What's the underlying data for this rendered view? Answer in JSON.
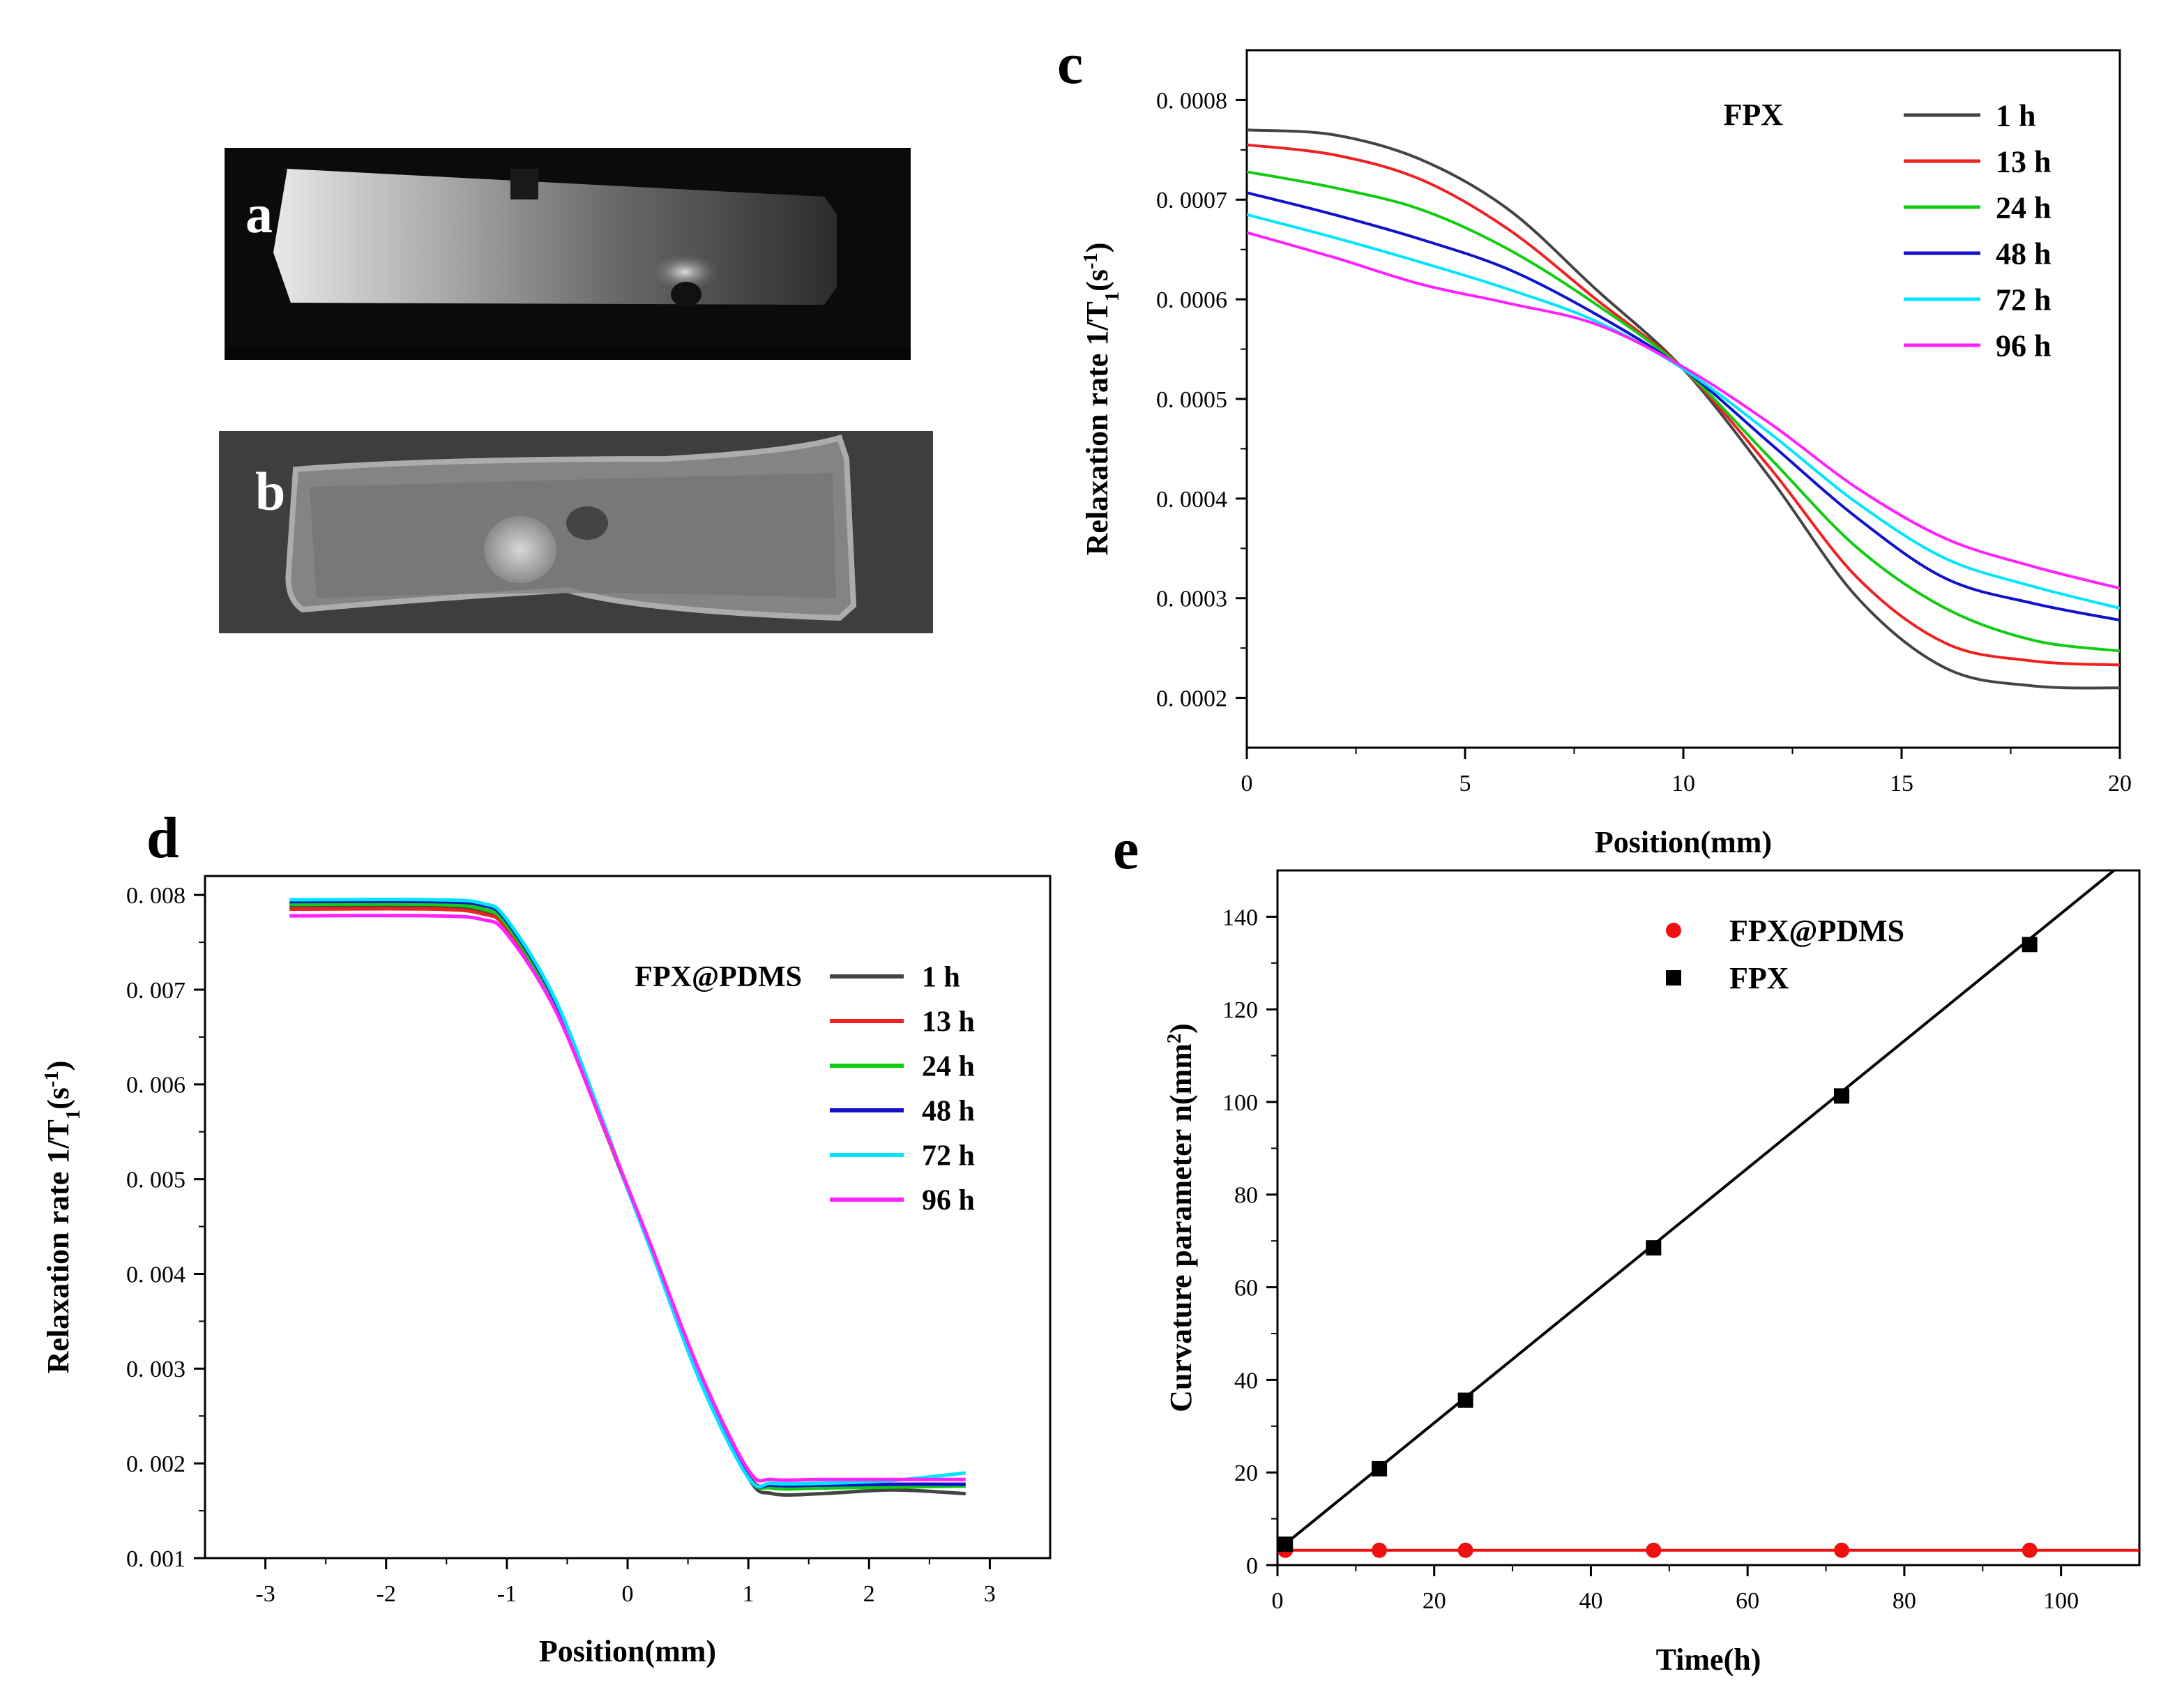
{
  "panels": {
    "a": {
      "letter": "a"
    },
    "b": {
      "letter": "b"
    }
  },
  "chart_data": [
    {
      "panel": "c",
      "type": "line",
      "letter": "c",
      "xlabel": "Position(mm)",
      "ylabel": "Relaxation rate 1/T1(s-1)",
      "xlim": [
        0,
        20
      ],
      "ylim": [
        0.00015,
        0.00085
      ],
      "xticks": [
        "0",
        "5",
        "10",
        "15",
        "20"
      ],
      "yticks": [
        "0. 0002",
        "0. 0003",
        "0. 0004",
        "0. 0005",
        "0. 0006",
        "0. 0007",
        "0. 0008"
      ],
      "legend_title": "FPX",
      "legend_position": "top-right",
      "series": [
        {
          "name": "1 h",
          "color": "#444444",
          "x": [
            0,
            2,
            4,
            6,
            8,
            10,
            12,
            14,
            16,
            18,
            20
          ],
          "y": [
            0.00077,
            0.000765,
            0.00074,
            0.00069,
            0.00061,
            0.00053,
            0.00042,
            0.0003,
            0.00023,
            0.000212,
            0.00021
          ]
        },
        {
          "name": "13 h",
          "color": "#ee2222",
          "x": [
            0,
            2,
            4,
            6,
            8,
            10,
            12,
            14,
            16,
            18,
            20
          ],
          "y": [
            0.000755,
            0.000745,
            0.00072,
            0.00067,
            0.0006,
            0.00053,
            0.00043,
            0.00032,
            0.000255,
            0.000237,
            0.000233
          ]
        },
        {
          "name": "24 h",
          "color": "#11cc11",
          "x": [
            0,
            2,
            4,
            6,
            8,
            10,
            12,
            14,
            16,
            18,
            20
          ],
          "y": [
            0.000728,
            0.000712,
            0.00069,
            0.00065,
            0.000595,
            0.00053,
            0.00044,
            0.00035,
            0.00029,
            0.000258,
            0.000247
          ]
        },
        {
          "name": "48 h",
          "color": "#1111cc",
          "x": [
            0,
            2,
            4,
            6,
            8,
            10,
            12,
            14,
            16,
            18,
            20
          ],
          "y": [
            0.000707,
            0.000685,
            0.00066,
            0.00063,
            0.000585,
            0.00053,
            0.000455,
            0.00038,
            0.00032,
            0.000295,
            0.000278
          ]
        },
        {
          "name": "72 h",
          "color": "#00e5ff",
          "x": [
            0,
            2,
            4,
            6,
            8,
            10,
            12,
            14,
            16,
            18,
            20
          ],
          "y": [
            0.000685,
            0.000662,
            0.000637,
            0.00061,
            0.000578,
            0.00053,
            0.000465,
            0.000395,
            0.00034,
            0.000312,
            0.00029
          ]
        },
        {
          "name": "96 h",
          "color": "#ff22ff",
          "x": [
            0,
            2,
            4,
            6,
            8,
            10,
            12,
            14,
            16,
            18,
            20
          ],
          "y": [
            0.000667,
            0.000642,
            0.000615,
            0.000596,
            0.000575,
            0.000532,
            0.000475,
            0.00041,
            0.00036,
            0.000332,
            0.00031
          ]
        }
      ]
    },
    {
      "panel": "d",
      "type": "line",
      "letter": "d",
      "xlabel": "Position(mm)",
      "ylabel": "Relaxation rate 1/T1(s-1)",
      "xlim": [
        -3.5,
        3.5
      ],
      "ylim": [
        0.001,
        0.0082
      ],
      "xticks": [
        "-3",
        "-2",
        "-1",
        "0",
        "1",
        "2",
        "3"
      ],
      "yticks": [
        "0. 001",
        "0. 002",
        "0. 003",
        "0. 004",
        "0. 005",
        "0. 006",
        "0. 007",
        "0. 008"
      ],
      "legend_title": "FPX@PDMS",
      "legend_position": "top-right",
      "series": [
        {
          "name": "1 h",
          "color": "#444444",
          "x": [
            -2.8,
            -1.6,
            -1.2,
            -1.0,
            -0.6,
            -0.2,
            0,
            0.2,
            0.6,
            1.0,
            1.2,
            1.6,
            2.2,
            2.8
          ],
          "y": [
            0.00787,
            0.00787,
            0.00782,
            0.00766,
            0.00682,
            0.00555,
            0.0049,
            0.00425,
            0.0029,
            0.00185,
            0.00168,
            0.00168,
            0.00172,
            0.00168
          ]
        },
        {
          "name": "13 h",
          "color": "#ee2222",
          "x": [
            -2.8,
            -1.6,
            -1.2,
            -1.0,
            -0.6,
            -0.2,
            0,
            0.2,
            0.6,
            1.0,
            1.2,
            1.6,
            2.2,
            2.8
          ],
          "y": [
            0.00785,
            0.00785,
            0.0078,
            0.00764,
            0.0068,
            0.00555,
            0.0049,
            0.00426,
            0.00292,
            0.00188,
            0.00176,
            0.00175,
            0.00176,
            0.00178
          ]
        },
        {
          "name": "24 h",
          "color": "#11cc11",
          "x": [
            -2.8,
            -1.6,
            -1.2,
            -1.0,
            -0.6,
            -0.2,
            0,
            0.2,
            0.6,
            1.0,
            1.2,
            1.6,
            2.2,
            2.8
          ],
          "y": [
            0.0079,
            0.0079,
            0.00785,
            0.00768,
            0.00684,
            0.00556,
            0.0049,
            0.00425,
            0.0029,
            0.00187,
            0.00174,
            0.00174,
            0.00175,
            0.00176
          ]
        },
        {
          "name": "48 h",
          "color": "#1111cc",
          "x": [
            -2.8,
            -1.6,
            -1.2,
            -1.0,
            -0.6,
            -0.2,
            0,
            0.2,
            0.6,
            1.0,
            1.2,
            1.6,
            2.2,
            2.8
          ],
          "y": [
            0.00793,
            0.00793,
            0.00789,
            0.00772,
            0.00688,
            0.00558,
            0.0049,
            0.00424,
            0.00288,
            0.00186,
            0.00177,
            0.00177,
            0.00178,
            0.00178
          ]
        },
        {
          "name": "72 h",
          "color": "#00e5ff",
          "x": [
            -2.8,
            -1.6,
            -1.2,
            -1.0,
            -0.6,
            -0.2,
            0,
            0.2,
            0.6,
            1.0,
            1.2,
            1.6,
            2.2,
            2.8
          ],
          "y": [
            0.00795,
            0.00795,
            0.00791,
            0.00774,
            0.0069,
            0.0056,
            0.0049,
            0.00423,
            0.00287,
            0.00185,
            0.00179,
            0.00179,
            0.00182,
            0.0019
          ]
        },
        {
          "name": "96 h",
          "color": "#ff22ff",
          "x": [
            -2.8,
            -1.6,
            -1.2,
            -1.0,
            -0.6,
            -0.2,
            0,
            0.2,
            0.6,
            1.0,
            1.2,
            1.6,
            2.2,
            2.8
          ],
          "y": [
            0.00778,
            0.00778,
            0.00774,
            0.00759,
            0.00679,
            0.00556,
            0.00492,
            0.00428,
            0.00296,
            0.00193,
            0.00183,
            0.00183,
            0.00183,
            0.00183
          ]
        }
      ]
    },
    {
      "panel": "e",
      "type": "scatter",
      "letter": "e",
      "xlabel": "Time(h)",
      "ylabel": "Curvature parameter n(mm2)",
      "xlim": [
        0,
        110
      ],
      "ylim": [
        0,
        150
      ],
      "xticks": [
        "0",
        "20",
        "40",
        "60",
        "80",
        "100"
      ],
      "yticks": [
        "0",
        "20",
        "40",
        "60",
        "80",
        "100",
        "120",
        "140"
      ],
      "legend_position": "top",
      "series": [
        {
          "name": "FPX@PDMS",
          "color": "#ee1111",
          "marker": "circle",
          "x": [
            1,
            13,
            24,
            48,
            72,
            96
          ],
          "y": [
            3.2,
            3.2,
            3.2,
            3.2,
            3.2,
            3.2
          ],
          "fit": {
            "slope": 0,
            "intercept": 3.2
          }
        },
        {
          "name": "FPX",
          "color": "#000000",
          "marker": "square",
          "x": [
            1,
            13,
            24,
            48,
            72,
            96
          ],
          "y": [
            4.5,
            20.8,
            35.6,
            68.5,
            101.3,
            134
          ],
          "fit": {
            "slope": 1.375,
            "intercept": 3.2
          }
        }
      ]
    }
  ]
}
